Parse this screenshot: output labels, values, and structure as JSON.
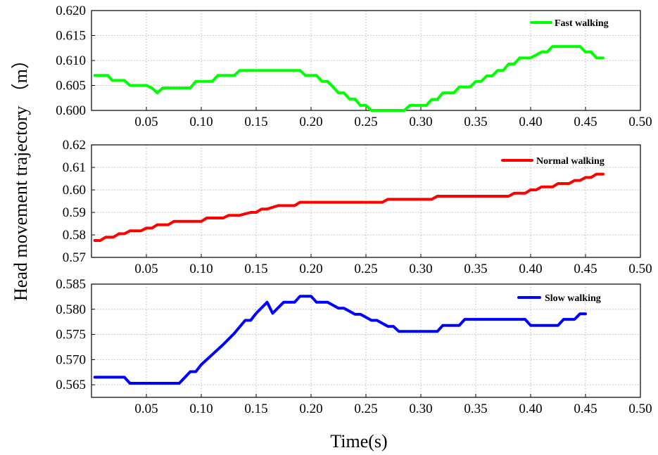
{
  "figure": {
    "ylabel": "Head movement trajectory （m）",
    "xlabel": "Time(s)"
  },
  "chart_data": [
    {
      "type": "line",
      "grid": true,
      "legend": "top-right",
      "xlim": [
        0.0,
        0.5
      ],
      "ylim": [
        0.6,
        0.62
      ],
      "x_ticks": [
        "0.05",
        "0.10",
        "0.15",
        "0.20",
        "0.25",
        "0.30",
        "0.35",
        "0.40",
        "0.45",
        "0.50"
      ],
      "y_ticks": [
        "0.600",
        "0.605",
        "0.610",
        "0.615",
        "0.620"
      ],
      "color": "#00ff00",
      "series": [
        {
          "name": "Fast walking",
          "x": [
            0.003,
            0.015,
            0.019,
            0.03,
            0.035,
            0.05,
            0.055,
            0.06,
            0.065,
            0.09,
            0.095,
            0.11,
            0.115,
            0.13,
            0.135,
            0.19,
            0.195,
            0.205,
            0.21,
            0.215,
            0.22,
            0.225,
            0.23,
            0.235,
            0.24,
            0.245,
            0.25,
            0.255,
            0.26,
            0.285,
            0.29,
            0.305,
            0.31,
            0.315,
            0.32,
            0.33,
            0.335,
            0.345,
            0.35,
            0.355,
            0.36,
            0.365,
            0.37,
            0.375,
            0.38,
            0.385,
            0.39,
            0.395,
            0.4,
            0.41,
            0.415,
            0.42,
            0.425,
            0.445,
            0.45,
            0.455,
            0.46,
            0.466
          ],
          "values": [
            0.607,
            0.607,
            0.606,
            0.606,
            0.605,
            0.605,
            0.6045,
            0.6035,
            0.6045,
            0.6045,
            0.6058,
            0.6058,
            0.607,
            0.607,
            0.608,
            0.608,
            0.607,
            0.607,
            0.6058,
            0.6058,
            0.6047,
            0.6035,
            0.6035,
            0.6023,
            0.6023,
            0.601,
            0.601,
            0.6,
            0.6,
            0.6,
            0.601,
            0.601,
            0.6022,
            0.6022,
            0.6035,
            0.6035,
            0.6047,
            0.6047,
            0.6058,
            0.6058,
            0.6069,
            0.6069,
            0.608,
            0.608,
            0.6093,
            0.6093,
            0.6105,
            0.6105,
            0.6105,
            0.6117,
            0.6117,
            0.6128,
            0.6128,
            0.6128,
            0.6117,
            0.6117,
            0.6105,
            0.6105
          ]
        }
      ]
    },
    {
      "type": "line",
      "grid": true,
      "legend": "top-right",
      "xlim": [
        0.0,
        0.5
      ],
      "ylim": [
        0.57,
        0.62
      ],
      "x_ticks": [
        "0.05",
        "0.10",
        "0.15",
        "0.20",
        "0.25",
        "0.30",
        "0.35",
        "0.40",
        "0.45",
        "0.50"
      ],
      "y_ticks": [
        "0.57",
        "0.58",
        "0.59",
        "0.60",
        "0.61",
        "0.62"
      ],
      "color": "#ff0000",
      "series": [
        {
          "name": "Normal walking",
          "x": [
            0.003,
            0.008,
            0.013,
            0.02,
            0.025,
            0.03,
            0.035,
            0.045,
            0.05,
            0.055,
            0.06,
            0.07,
            0.075,
            0.1,
            0.105,
            0.12,
            0.125,
            0.13,
            0.135,
            0.145,
            0.15,
            0.155,
            0.16,
            0.17,
            0.175,
            0.185,
            0.19,
            0.265,
            0.27,
            0.31,
            0.315,
            0.38,
            0.385,
            0.395,
            0.4,
            0.405,
            0.41,
            0.42,
            0.425,
            0.435,
            0.44,
            0.445,
            0.45,
            0.455,
            0.46,
            0.466
          ],
          "values": [
            0.5775,
            0.5775,
            0.579,
            0.579,
            0.5805,
            0.5805,
            0.5818,
            0.5818,
            0.583,
            0.583,
            0.5845,
            0.5845,
            0.586,
            0.586,
            0.5875,
            0.5875,
            0.5887,
            0.5887,
            0.5887,
            0.59,
            0.59,
            0.5915,
            0.5915,
            0.593,
            0.593,
            0.593,
            0.5945,
            0.5945,
            0.5958,
            0.5958,
            0.5972,
            0.5972,
            0.5985,
            0.5985,
            0.6,
            0.6,
            0.6013,
            0.6013,
            0.6028,
            0.6028,
            0.6042,
            0.6042,
            0.6055,
            0.6055,
            0.607,
            0.607
          ]
        }
      ]
    },
    {
      "type": "line",
      "grid": true,
      "legend": "top-right",
      "xlim": [
        0.0,
        0.5
      ],
      "ylim": [
        0.5625,
        0.585
      ],
      "x_ticks": [
        "0.05",
        "0.10",
        "0.15",
        "0.20",
        "0.25",
        "0.30",
        "0.35",
        "0.40",
        "0.45",
        "0.50"
      ],
      "y_ticks": [
        "0.565",
        "0.570",
        "0.575",
        "0.580",
        "0.585"
      ],
      "color": "#0000ff",
      "series": [
        {
          "name": "Slow walking",
          "x": [
            0.003,
            0.03,
            0.035,
            0.08,
            0.09,
            0.095,
            0.1,
            0.11,
            0.12,
            0.13,
            0.14,
            0.145,
            0.15,
            0.16,
            0.165,
            0.175,
            0.185,
            0.19,
            0.2,
            0.205,
            0.215,
            0.225,
            0.23,
            0.24,
            0.245,
            0.255,
            0.26,
            0.27,
            0.275,
            0.28,
            0.315,
            0.32,
            0.33,
            0.335,
            0.34,
            0.395,
            0.4,
            0.425,
            0.43,
            0.44,
            0.445,
            0.45
          ],
          "values": [
            0.5665,
            0.5665,
            0.5653,
            0.5653,
            0.5676,
            0.5676,
            0.569,
            0.571,
            0.573,
            0.5752,
            0.5778,
            0.5778,
            0.5792,
            0.5814,
            0.5792,
            0.5814,
            0.5814,
            0.5826,
            0.5826,
            0.5814,
            0.5814,
            0.5802,
            0.5802,
            0.579,
            0.579,
            0.5778,
            0.5778,
            0.5766,
            0.5766,
            0.5756,
            0.5756,
            0.5768,
            0.5768,
            0.5768,
            0.578,
            0.578,
            0.5768,
            0.5768,
            0.578,
            0.578,
            0.5791,
            0.5791
          ]
        }
      ]
    }
  ]
}
